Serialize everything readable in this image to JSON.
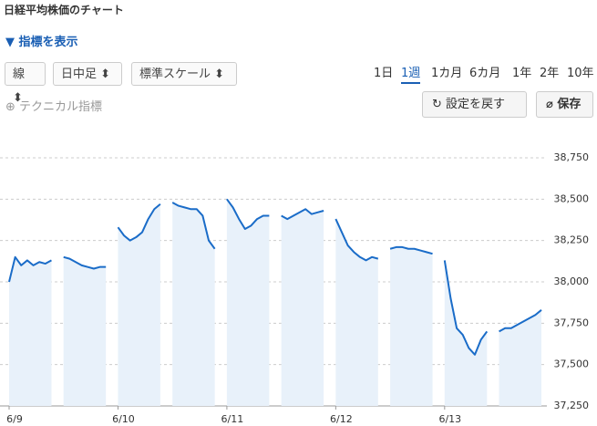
{
  "header": {
    "title": "日経平均株価のチャート",
    "toggle": "指標を表示"
  },
  "controls": {
    "selects": [
      "線",
      "日中足",
      "標準スケール"
    ],
    "periods": [
      {
        "label": "1日",
        "active": false
      },
      {
        "label": "1週",
        "active": true
      },
      {
        "label": "1カ月",
        "active": false
      },
      {
        "label": "6カ月",
        "active": false
      },
      {
        "label": "1年",
        "active": false
      },
      {
        "label": "2年",
        "active": false
      },
      {
        "label": "10年",
        "active": false
      }
    ],
    "technical": "テクニカル指標",
    "reset": "設定を戻す",
    "save": "保存"
  },
  "chart_data": {
    "type": "line",
    "color": "#1a6cc8",
    "fill": "#e8f1fa",
    "grid": true,
    "categories": [
      "6/9",
      null,
      null,
      null,
      null,
      null,
      null,
      null,
      null,
      null,
      null,
      null,
      null,
      null,
      null,
      null,
      null,
      null,
      "6/10",
      null,
      null,
      null,
      null,
      null,
      null,
      null,
      null,
      null,
      null,
      null,
      null,
      null,
      null,
      null,
      null,
      null,
      "6/11",
      null,
      null,
      null,
      null,
      null,
      null,
      null,
      null,
      null,
      null,
      null,
      null,
      null,
      null,
      null,
      null,
      null,
      "6/12",
      null,
      null,
      null,
      null,
      null,
      null,
      null,
      null,
      null,
      null,
      null,
      null,
      null,
      null,
      null,
      null,
      null,
      "6/13",
      null,
      null,
      null,
      null,
      null,
      null,
      null,
      null,
      null,
      null,
      null,
      null,
      null,
      null,
      null,
      null
    ],
    "values": [
      38000,
      38150,
      38100,
      38130,
      38100,
      38120,
      38110,
      38130,
      null,
      38150,
      38140,
      38120,
      38100,
      38090,
      38080,
      38090,
      38090,
      null,
      38330,
      38280,
      38250,
      38270,
      38300,
      38380,
      38440,
      38470,
      null,
      38480,
      38460,
      38450,
      38440,
      38440,
      38400,
      38250,
      38200,
      null,
      38500,
      38450,
      38380,
      38320,
      38340,
      38380,
      38400,
      38400,
      null,
      38400,
      38380,
      38400,
      38420,
      38440,
      38410,
      38420,
      38430,
      null,
      38380,
      38300,
      38220,
      38180,
      38150,
      38130,
      38150,
      38140,
      null,
      38200,
      38210,
      38210,
      38200,
      38200,
      38190,
      38180,
      38170,
      null,
      38130,
      37900,
      37720,
      37680,
      37600,
      37560,
      37650,
      37700,
      null,
      37700,
      37720,
      37720,
      37740,
      37760,
      37780,
      37800,
      37830
    ],
    "ylim": [
      37250,
      38750
    ],
    "yticks": [
      {
        "value": 37250,
        "label": "37,250"
      },
      {
        "value": 37500,
        "label": "37,500"
      },
      {
        "value": 37750,
        "label": "37,750"
      },
      {
        "value": 38000,
        "label": "38,000"
      },
      {
        "value": 38250,
        "label": "38,250"
      },
      {
        "value": 38500,
        "label": "38,500"
      },
      {
        "value": 38750,
        "label": "38,750"
      }
    ]
  }
}
